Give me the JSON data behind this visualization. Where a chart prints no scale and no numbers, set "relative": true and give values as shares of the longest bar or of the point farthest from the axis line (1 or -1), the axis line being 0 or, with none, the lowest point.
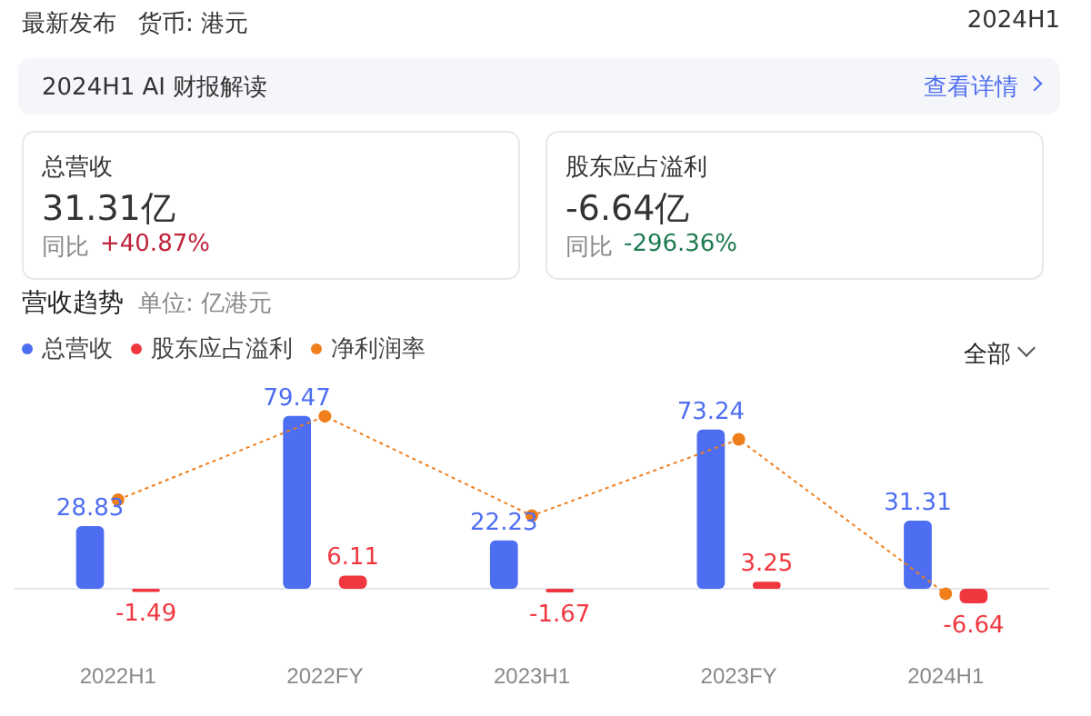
{
  "chart_data": [
    {
      "type": "other",
      "annotations": [
        "最新发布",
        "货币: 港元",
        "2024H1",
        "2024H1 AI 财报解读",
        "查看详情",
        "总营收",
        "31.31亿",
        "同比",
        "+40.87%",
        "股东应占溢利",
        "-6.64亿",
        "同比",
        "-296.36%"
      ]
    },
    {
      "type": "bar",
      "title": "营收趋势",
      "subtitle": "单位: 亿港元",
      "categories": [
        "2022H1",
        "2022FY",
        "2023H1",
        "2023FY",
        "2024H1"
      ],
      "series": [
        {
          "name": "总营收",
          "color": "#4e6ef2",
          "values": [
            28.83,
            79.47,
            22.23,
            73.24,
            31.31
          ],
          "value_labels": [
            "28.83",
            "79.47",
            "22.23",
            "73.24",
            "31.31"
          ]
        },
        {
          "name": "股东应占溢利",
          "color": "#f0373f",
          "values": [
            -1.49,
            6.11,
            -1.67,
            3.25,
            -6.64
          ],
          "value_labels": [
            "-1.49",
            "6.11",
            "-1.67",
            "3.25",
            "-6.64"
          ]
        }
      ],
      "legend": "top left",
      "grid": false,
      "tick_labels": "x",
      "annotations": [
        "全部"
      ]
    },
    {
      "type": "line",
      "relative": true,
      "categories": [
        null,
        null,
        null,
        null,
        null
      ],
      "series": [
        {
          "name": "净利润率",
          "color": "#f07e1b",
          "marker": "circle",
          "line_style": "dotted",
          "values": [
            0.53,
            1,
            0.44,
            0.87,
            0
          ]
        }
      ],
      "legend": "top left",
      "tick_labels": false
    }
  ]
}
